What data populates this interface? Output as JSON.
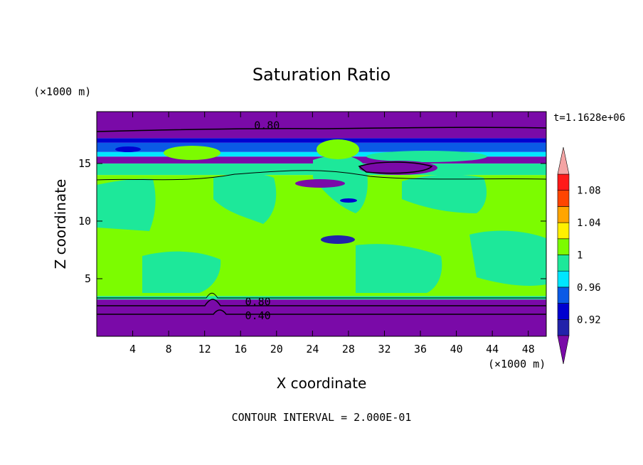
{
  "chart_data": {
    "type": "heatmap",
    "title": "Saturation Ratio",
    "xlabel": "X coordinate",
    "ylabel": "Z coordinate",
    "x_unit_label": "(×1000 m)",
    "y_unit_label": "(×1000 m)",
    "time_label": "t=1.1628e+06",
    "footer": "CONTOUR INTERVAL = 2.000E-01",
    "xlim": [
      0,
      50
    ],
    "ylim": [
      0,
      19.5
    ],
    "x_ticks": [
      4,
      8,
      12,
      16,
      20,
      24,
      28,
      32,
      36,
      40,
      44,
      48
    ],
    "y_ticks": [
      5,
      10,
      15
    ],
    "grid": false,
    "colorbar": {
      "placement": "right",
      "levels": [
        0.9,
        0.92,
        0.94,
        0.96,
        0.98,
        1.0,
        1.02,
        1.04,
        1.06,
        1.08,
        1.1
      ],
      "colors": [
        "#7a0aa8",
        "#2222aa",
        "#0000d0",
        "#0a5ae6",
        "#00e6ff",
        "#1de89a",
        "#7cfc00",
        "#fff000",
        "#ffa500",
        "#ff4500",
        "#ff1a1a",
        "#f4a4a4"
      ],
      "tick_labels": [
        {
          "value": 0.92,
          "label": "0.92"
        },
        {
          "value": 0.96,
          "label": "0.96"
        },
        {
          "value": 1.0,
          "label": "1"
        },
        {
          "value": 1.04,
          "label": "1.04"
        },
        {
          "value": 1.08,
          "label": "1.08"
        }
      ]
    },
    "contour_labels": [
      {
        "text": "0.80",
        "x": 17.5,
        "z": 18.3
      },
      {
        "text": "0.80",
        "x": 16.5,
        "z": 3.0
      },
      {
        "text": "0.40",
        "x": 16.5,
        "z": 1.8
      }
    ],
    "bands": [
      {
        "z0": 0.0,
        "z1": 3.2,
        "color": "#7a0aa8"
      },
      {
        "z0": 3.2,
        "z1": 3.5,
        "color": "#1de89a"
      },
      {
        "z0": 3.5,
        "z1": 14.0,
        "color": "#7cfc00"
      },
      {
        "z0": 14.0,
        "z1": 15.0,
        "color": "#1de89a"
      },
      {
        "z0": 15.0,
        "z1": 15.6,
        "color": "#7a0aa8"
      },
      {
        "z0": 15.6,
        "z1": 16.0,
        "color": "#00e6ff"
      },
      {
        "z0": 16.0,
        "z1": 16.8,
        "color": "#0a5ae6"
      },
      {
        "z0": 16.8,
        "z1": 17.2,
        "color": "#0000d0"
      },
      {
        "z0": 17.2,
        "z1": 19.5,
        "color": "#7a0aa8"
      }
    ]
  }
}
